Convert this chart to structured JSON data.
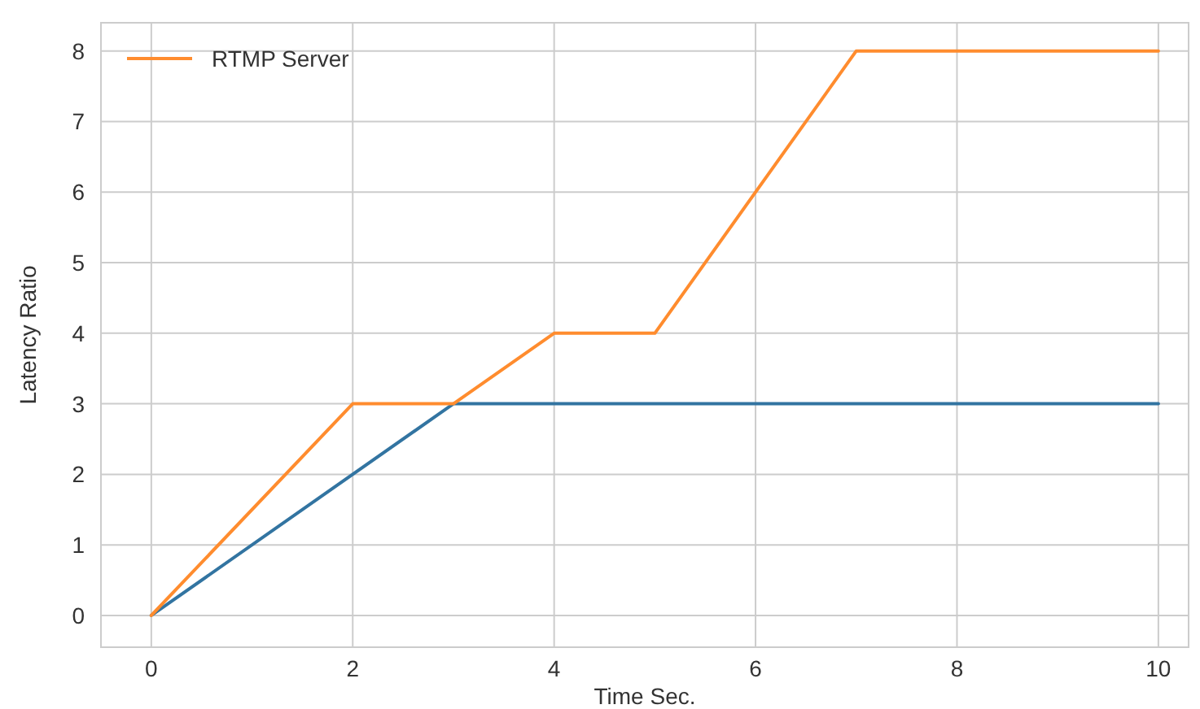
{
  "chart_data": {
    "type": "line",
    "xlabel": "Time Sec.",
    "ylabel": "Latency Ratio",
    "xlim": [
      -0.5,
      10.3
    ],
    "ylim": [
      -0.45,
      8.4
    ],
    "xticks": [
      0,
      2,
      4,
      6,
      8,
      10
    ],
    "yticks": [
      0,
      1,
      2,
      3,
      4,
      5,
      6,
      7,
      8
    ],
    "grid": true,
    "legend": "top left",
    "line_style": "solid",
    "marker": "none",
    "series": [
      {
        "color": "#3274a1",
        "x": [
          0,
          3,
          10
        ],
        "values": [
          0,
          3,
          3
        ]
      },
      {
        "name": "RTMP Server",
        "color": "#ff8c2e",
        "x": [
          0,
          2,
          3,
          4,
          5,
          7,
          10
        ],
        "values": [
          0,
          3,
          3,
          4,
          4,
          8,
          8
        ]
      }
    ]
  }
}
